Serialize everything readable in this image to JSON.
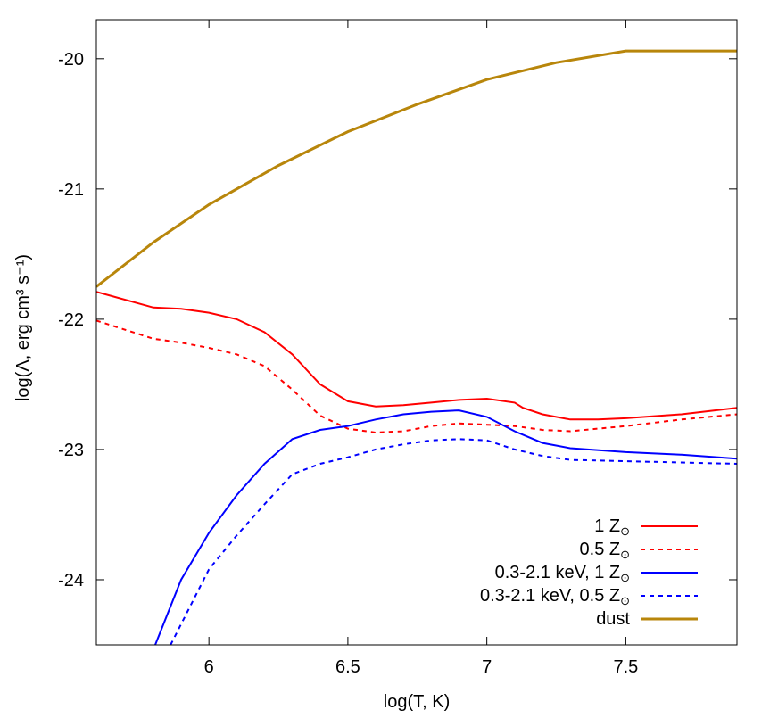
{
  "chart_data": {
    "type": "line",
    "title": "",
    "xlabel": "log(T, K)",
    "ylabel": "log(Λ, erg cm³ s⁻¹)",
    "xlim": [
      5.595,
      7.9
    ],
    "ylim": [
      -24.5,
      -19.7
    ],
    "xticks": [
      6,
      6.5,
      7,
      7.5
    ],
    "xtick_labels": [
      "6",
      "6.5",
      "7",
      "7.5"
    ],
    "yticks": [
      -20,
      -21,
      -22,
      -23,
      -24
    ],
    "ytick_labels": [
      "-20",
      "-21",
      "-22",
      "-23",
      "-24"
    ],
    "grid": false,
    "legend_position": "bottom-right",
    "series": [
      {
        "name": "1 Z⊙",
        "color": "#ff0000",
        "dash": "solid",
        "x": [
          5.595,
          5.8,
          5.9,
          6.0,
          6.1,
          6.2,
          6.3,
          6.4,
          6.5,
          6.6,
          6.7,
          6.8,
          6.9,
          7.0,
          7.1,
          7.13,
          7.2,
          7.3,
          7.4,
          7.5,
          7.7,
          7.9
        ],
        "y": [
          -21.79,
          -21.91,
          -21.92,
          -21.95,
          -22.0,
          -22.1,
          -22.27,
          -22.5,
          -22.63,
          -22.67,
          -22.66,
          -22.64,
          -22.62,
          -22.61,
          -22.64,
          -22.68,
          -22.73,
          -22.77,
          -22.77,
          -22.76,
          -22.73,
          -22.68
        ]
      },
      {
        "name": "0.5 Z⊙",
        "color": "#ff0000",
        "dash": "dashed",
        "x": [
          5.595,
          5.8,
          5.9,
          6.0,
          6.1,
          6.2,
          6.3,
          6.4,
          6.5,
          6.6,
          6.7,
          6.8,
          6.9,
          7.0,
          7.1,
          7.2,
          7.3,
          7.5,
          7.7,
          7.9
        ],
        "y": [
          -22.01,
          -22.15,
          -22.18,
          -22.22,
          -22.27,
          -22.36,
          -22.54,
          -22.74,
          -22.84,
          -22.87,
          -22.86,
          -22.82,
          -22.8,
          -22.81,
          -22.82,
          -22.85,
          -22.86,
          -22.82,
          -22.77,
          -22.73
        ]
      },
      {
        "name": "0.3-2.1 keV, 1 Z⊙",
        "color": "#0000ff",
        "dash": "solid",
        "x": [
          5.807,
          5.9,
          6.0,
          6.1,
          6.2,
          6.3,
          6.4,
          6.5,
          6.6,
          6.7,
          6.8,
          6.9,
          7.0,
          7.1,
          7.2,
          7.3,
          7.5,
          7.7,
          7.9
        ],
        "y": [
          -24.5,
          -24.0,
          -23.64,
          -23.35,
          -23.11,
          -22.92,
          -22.85,
          -22.82,
          -22.77,
          -22.73,
          -22.71,
          -22.7,
          -22.75,
          -22.86,
          -22.95,
          -22.99,
          -23.02,
          -23.04,
          -23.07
        ]
      },
      {
        "name": "0.3-2.1 keV, 0.5 Z⊙",
        "color": "#0000ff",
        "dash": "dashed",
        "x": [
          5.862,
          6.0,
          6.1,
          6.2,
          6.3,
          6.4,
          6.5,
          6.6,
          6.7,
          6.8,
          6.9,
          7.0,
          7.1,
          7.2,
          7.3,
          7.5,
          7.7,
          7.9
        ],
        "y": [
          -24.5,
          -23.92,
          -23.66,
          -23.42,
          -23.19,
          -23.11,
          -23.06,
          -23.0,
          -22.96,
          -22.93,
          -22.92,
          -22.93,
          -23.0,
          -23.05,
          -23.08,
          -23.09,
          -23.1,
          -23.11
        ]
      },
      {
        "name": "dust",
        "color": "#b8860b",
        "dash": "solid",
        "x": [
          5.595,
          5.8,
          6.0,
          6.25,
          6.5,
          6.75,
          7.0,
          7.25,
          7.5,
          7.9
        ],
        "y": [
          -21.75,
          -21.41,
          -21.12,
          -20.82,
          -20.56,
          -20.35,
          -20.16,
          -20.03,
          -19.94,
          -19.94
        ]
      }
    ]
  }
}
